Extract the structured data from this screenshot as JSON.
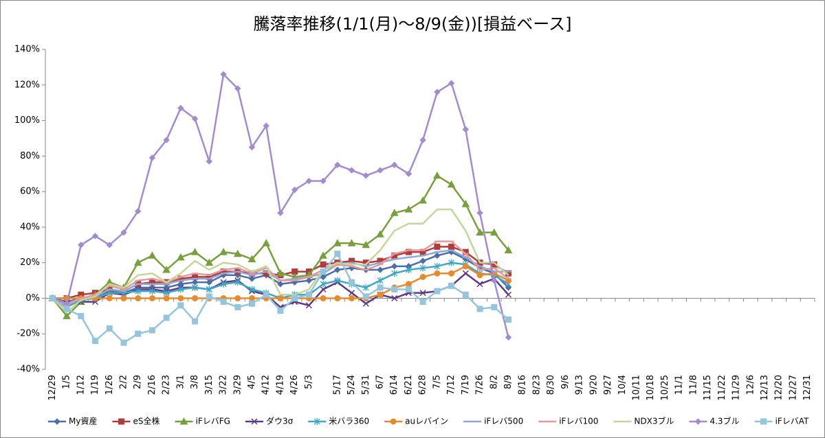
{
  "chart_data": {
    "type": "line",
    "title": "騰落率推移(1/1(月)～8/9(金))[損益ベース]",
    "categories": [
      "12/29",
      "1/5",
      "1/12",
      "1/19",
      "1/26",
      "2/2",
      "2/9",
      "2/16",
      "2/23",
      "3/1",
      "3/8",
      "3/15",
      "3/22",
      "3/29",
      "4/5",
      "4/12",
      "4/19",
      "4/26",
      "5/3",
      null,
      "5/17",
      "5/24",
      "5/31",
      "6/7",
      "6/14",
      "6/21",
      "6/28",
      "7/5",
      "7/12",
      "7/19",
      "7/26",
      "8/2",
      "8/9",
      "8/16",
      "8/23",
      "8/30",
      "9/6",
      "9/13",
      "9/20",
      "9/27",
      "10/4",
      "10/11",
      "10/18",
      "10/25",
      "11/1",
      "11/8",
      "11/15",
      "11/22",
      "11/29",
      "12/6",
      "12/13",
      "12/20",
      "12/27",
      "12/31"
    ],
    "ylim": [
      -40,
      140
    ],
    "yticks": [
      {
        "value": -40,
        "label": "-40%"
      },
      {
        "value": -20,
        "label": "-20%"
      },
      {
        "value": 0,
        "label": "0%"
      },
      {
        "value": 20,
        "label": "20%"
      },
      {
        "value": 40,
        "label": "40%"
      },
      {
        "value": 60,
        "label": "60%"
      },
      {
        "value": 80,
        "label": "80%"
      },
      {
        "value": 100,
        "label": "100%"
      },
      {
        "value": 120,
        "label": "120%"
      },
      {
        "value": 140,
        "label": "140%"
      }
    ],
    "grid": false,
    "legend": "bottom",
    "series": [
      {
        "name": "My資産",
        "color": "#4a6ea8",
        "marker": "diamond",
        "values": [
          0,
          -2,
          0,
          1,
          4,
          3,
          6,
          6,
          6,
          8,
          9,
          9,
          13,
          13,
          11,
          13,
          8,
          9,
          10,
          12,
          16,
          17,
          16,
          16,
          18,
          18,
          21,
          24,
          26,
          22,
          17,
          14,
          6,
          null,
          null,
          null,
          null,
          null,
          null,
          null,
          null,
          null,
          null,
          null,
          null,
          null,
          null,
          null,
          null,
          null,
          null,
          null,
          null,
          null
        ]
      },
      {
        "name": "eS全株",
        "color": "#b03c3c",
        "marker": "square",
        "values": [
          0,
          0,
          2,
          3,
          5,
          4,
          8,
          9,
          9,
          11,
          12,
          12,
          15,
          15,
          14,
          14,
          13,
          15,
          15,
          19,
          20,
          21,
          20,
          21,
          24,
          26,
          26,
          29,
          29,
          26,
          20,
          19,
          14,
          null,
          null,
          null,
          null,
          null,
          null,
          null,
          null,
          null,
          null,
          null,
          null,
          null,
          null,
          null,
          null,
          null,
          null,
          null,
          null,
          null
        ]
      },
      {
        "name": "iFレバFG",
        "color": "#77a03c",
        "marker": "triangle",
        "values": [
          0,
          -10,
          -2,
          2,
          9,
          6,
          20,
          24,
          16,
          23,
          26,
          20,
          26,
          25,
          22,
          31,
          14,
          12,
          13,
          24,
          31,
          31,
          30,
          36,
          48,
          50,
          55,
          69,
          64,
          53,
          37,
          37,
          27,
          null,
          null,
          null,
          null,
          null,
          null,
          null,
          null,
          null,
          null,
          null,
          null,
          null,
          null,
          null,
          null,
          null,
          null,
          null,
          null,
          null
        ]
      },
      {
        "name": "ダウ3σ",
        "color": "#5d3a85",
        "marker": "x",
        "values": [
          0,
          -3,
          -2,
          -2,
          3,
          2,
          5,
          5,
          4,
          6,
          6,
          5,
          9,
          10,
          4,
          2,
          -5,
          -2,
          -4,
          5,
          9,
          3,
          -3,
          2,
          0,
          3,
          3,
          4,
          7,
          14,
          8,
          11,
          2,
          null,
          null,
          null,
          null,
          null,
          null,
          null,
          null,
          null,
          null,
          null,
          null,
          null,
          null,
          null,
          null,
          null,
          null,
          null,
          null,
          null
        ]
      },
      {
        "name": "米バラ360",
        "color": "#3da7c4",
        "marker": "star",
        "values": [
          0,
          -5,
          -1,
          0,
          3,
          3,
          4,
          4,
          3,
          5,
          6,
          5,
          8,
          9,
          5,
          3,
          0,
          2,
          2,
          8,
          10,
          8,
          6,
          10,
          14,
          16,
          17,
          18,
          20,
          19,
          14,
          13,
          8,
          null,
          null,
          null,
          null,
          null,
          null,
          null,
          null,
          null,
          null,
          null,
          null,
          null,
          null,
          null,
          null,
          null,
          null,
          null,
          null,
          null
        ]
      },
      {
        "name": "auレバイン",
        "color": "#e58a2e",
        "marker": "circle",
        "values": [
          0,
          0,
          0,
          0,
          0,
          0,
          0,
          0,
          0,
          0,
          0,
          0,
          0,
          0,
          0,
          0,
          0,
          0,
          0,
          0,
          0,
          0,
          0,
          2,
          6,
          8,
          12,
          14,
          14,
          18,
          13,
          14,
          10,
          null,
          null,
          null,
          null,
          null,
          null,
          null,
          null,
          null,
          null,
          null,
          null,
          null,
          null,
          null,
          null,
          null,
          null,
          null,
          null,
          null
        ]
      },
      {
        "name": "iFレバ500",
        "color": "#8fa8d8",
        "marker": "dash",
        "values": [
          0,
          -3,
          0,
          1,
          5,
          4,
          8,
          8,
          8,
          10,
          11,
          11,
          14,
          15,
          13,
          15,
          10,
          11,
          12,
          14,
          19,
          20,
          18,
          20,
          22,
          23,
          24,
          26,
          27,
          23,
          18,
          15,
          15,
          null,
          null,
          null,
          null,
          null,
          null,
          null,
          null,
          null,
          null,
          null,
          null,
          null,
          null,
          null,
          null,
          null,
          null,
          null,
          null,
          null
        ]
      },
      {
        "name": "iFレバ100",
        "color": "#e59a9a",
        "marker": "dash",
        "values": [
          0,
          -4,
          0,
          2,
          7,
          5,
          10,
          11,
          9,
          12,
          14,
          13,
          16,
          17,
          14,
          17,
          10,
          10,
          12,
          16,
          19,
          18,
          16,
          19,
          25,
          27,
          27,
          32,
          32,
          25,
          16,
          17,
          11,
          null,
          null,
          null,
          null,
          null,
          null,
          null,
          null,
          null,
          null,
          null,
          null,
          null,
          null,
          null,
          null,
          null,
          null,
          null,
          null,
          null
        ]
      },
      {
        "name": "NDX3ブル",
        "color": "#c4d69b",
        "marker": "none",
        "values": [
          0,
          -8,
          -1,
          1,
          8,
          6,
          13,
          14,
          9,
          14,
          21,
          16,
          20,
          19,
          15,
          18,
          2,
          2,
          5,
          16,
          20,
          19,
          19,
          27,
          38,
          42,
          42,
          50,
          50,
          38,
          20,
          20,
          13,
          null,
          null,
          null,
          null,
          null,
          null,
          null,
          null,
          null,
          null,
          null,
          null,
          null,
          null,
          null,
          null,
          null,
          null,
          null,
          null,
          null
        ]
      },
      {
        "name": "4.3ブル",
        "color": "#a18ccf",
        "marker": "diamond",
        "values": [
          0,
          -3,
          30,
          35,
          30,
          37,
          49,
          79,
          89,
          107,
          101,
          77,
          126,
          118,
          85,
          97,
          48,
          61,
          66,
          66,
          75,
          72,
          69,
          72,
          75,
          70,
          89,
          116,
          121,
          95,
          48,
          10,
          -22,
          null,
          null,
          null,
          null,
          null,
          null,
          null,
          null,
          null,
          null,
          null,
          null,
          null,
          null,
          null,
          null,
          null,
          null,
          null,
          null,
          null
        ]
      },
      {
        "name": "iFレバAT",
        "color": "#95c5db",
        "marker": "square",
        "values": [
          0,
          -6,
          -10,
          -24,
          -17,
          -25,
          -20,
          -18,
          -11,
          -4,
          -13,
          1,
          -2,
          -5,
          -3,
          2,
          -7,
          0,
          2,
          15,
          25,
          9,
          1,
          6,
          5,
          5,
          -2,
          4,
          7,
          2,
          -6,
          -5,
          -12,
          null,
          null,
          null,
          null,
          null,
          null,
          null,
          null,
          null,
          null,
          null,
          null,
          null,
          null,
          null,
          null,
          null,
          null,
          null,
          null,
          null
        ]
      }
    ]
  }
}
